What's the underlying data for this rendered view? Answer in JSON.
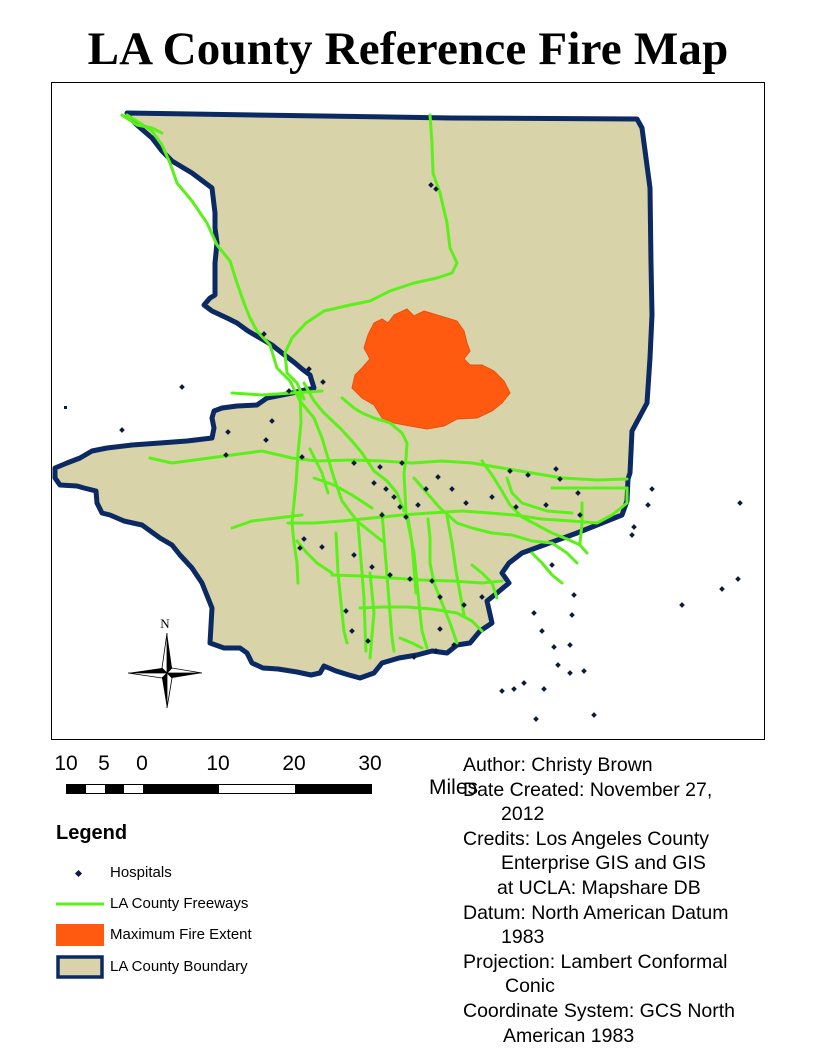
{
  "title": "LA County Reference Fire Map",
  "map": {
    "north_arrow_label": "N",
    "colors": {
      "county_fill": "#d8d3a8",
      "county_border": "#0b2a63",
      "freeway": "#5cf01a",
      "fire": "#ff5a0f",
      "hospital": "#0b1b3f"
    }
  },
  "scale_bar": {
    "labels": [
      "10",
      "5",
      "0",
      "10",
      "20",
      "30"
    ],
    "units": "Miles"
  },
  "legend": {
    "title": "Legend",
    "items": [
      {
        "label": "Hospitals",
        "symbol": "hospital-point"
      },
      {
        "label": "LA County Freeways",
        "symbol": "freeway-line"
      },
      {
        "label": "Maximum Fire Extent",
        "symbol": "fire-polygon"
      },
      {
        "label": "LA County Boundary",
        "symbol": "county-polygon"
      }
    ]
  },
  "metadata": [
    {
      "line1": "Author: Christy Brown",
      "line2": ""
    },
    {
      "line1": "Date Created: November 27,",
      "line2": "2012"
    },
    {
      "line1": "Credits: Los Angeles County",
      "line2": "Enterprise GIS and GIS",
      "line3": "at UCLA: Mapshare DB"
    },
    {
      "line1": "Datum: North American Datum",
      "line2": "1983"
    },
    {
      "line1": "Projection: Lambert Conformal",
      "line2": "Conic"
    },
    {
      "line1": "Coordinate System: GCS North",
      "line2": "American 1983"
    }
  ]
}
